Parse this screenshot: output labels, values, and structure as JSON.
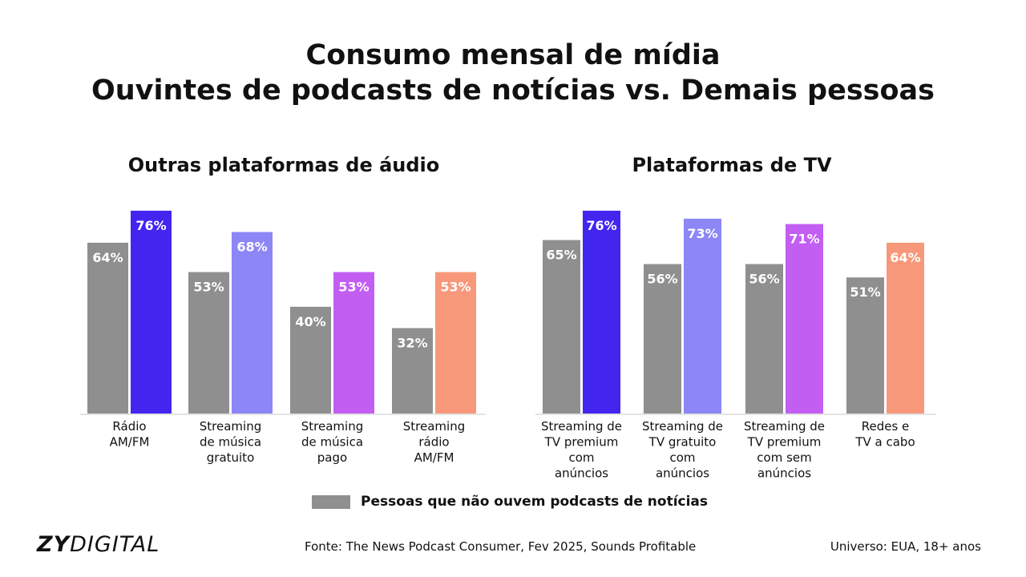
{
  "title_line1": "Consumo mensal de mídia",
  "title_line2": "Ouvintes de podcasts de notícias vs. Demais pessoas",
  "legend": {
    "label": "Pessoas que não ouvem podcasts de notícias",
    "color": "#8f8f8f"
  },
  "footer": {
    "logo_bold": "ZY",
    "logo_light": "DIGITAL",
    "source": "Fonte: The News Podcast Consumer, Fev 2025, Sounds Profitable",
    "universe": "Universo: EUA, 18+ anos"
  },
  "chart_data": [
    {
      "type": "bar",
      "title": "Outras plataformas de áudio",
      "ylim": [
        0,
        100
      ],
      "categories": [
        [
          "Rádio",
          "AM/FM"
        ],
        [
          "Streaming",
          "de música",
          "gratuito"
        ],
        [
          "Streaming",
          "de música",
          "pago"
        ],
        [
          "Streaming",
          "rádio",
          "AM/FM"
        ]
      ],
      "series": [
        {
          "name": "Pessoas que não ouvem podcasts de notícias",
          "values": [
            64,
            53,
            40,
            32
          ],
          "labels": [
            "64%",
            "53%",
            "40%",
            "32%"
          ],
          "colors": [
            "#8f8f8f",
            "#8f8f8f",
            "#8f8f8f",
            "#8f8f8f"
          ]
        },
        {
          "values": [
            76,
            68,
            53,
            53
          ],
          "labels": [
            "76%",
            "68%",
            "53%",
            "53%"
          ],
          "colors": [
            "#4226f0",
            "#8c86f7",
            "#c35ef2",
            "#f7987a"
          ]
        }
      ]
    },
    {
      "type": "bar",
      "title": "Plataformas de TV",
      "ylim": [
        0,
        100
      ],
      "categories": [
        [
          "Streaming de",
          "TV premium",
          "com",
          "anúncios"
        ],
        [
          "Streaming de",
          "TV gratuito",
          "com",
          "anúncios"
        ],
        [
          "Streaming de",
          "TV premium",
          "com sem",
          "anúncios"
        ],
        [
          "Redes e",
          "TV a cabo"
        ]
      ],
      "series": [
        {
          "name": "Pessoas que não ouvem podcasts de notícias",
          "values": [
            65,
            56,
            56,
            51
          ],
          "labels": [
            "65%",
            "56%",
            "56%",
            "51%"
          ],
          "colors": [
            "#8f8f8f",
            "#8f8f8f",
            "#8f8f8f",
            "#8f8f8f"
          ]
        },
        {
          "values": [
            76,
            73,
            71,
            64
          ],
          "labels": [
            "76%",
            "73%",
            "71%",
            "64%"
          ],
          "colors": [
            "#4226f0",
            "#8c86f7",
            "#c35ef2",
            "#f7987a"
          ]
        }
      ]
    }
  ]
}
